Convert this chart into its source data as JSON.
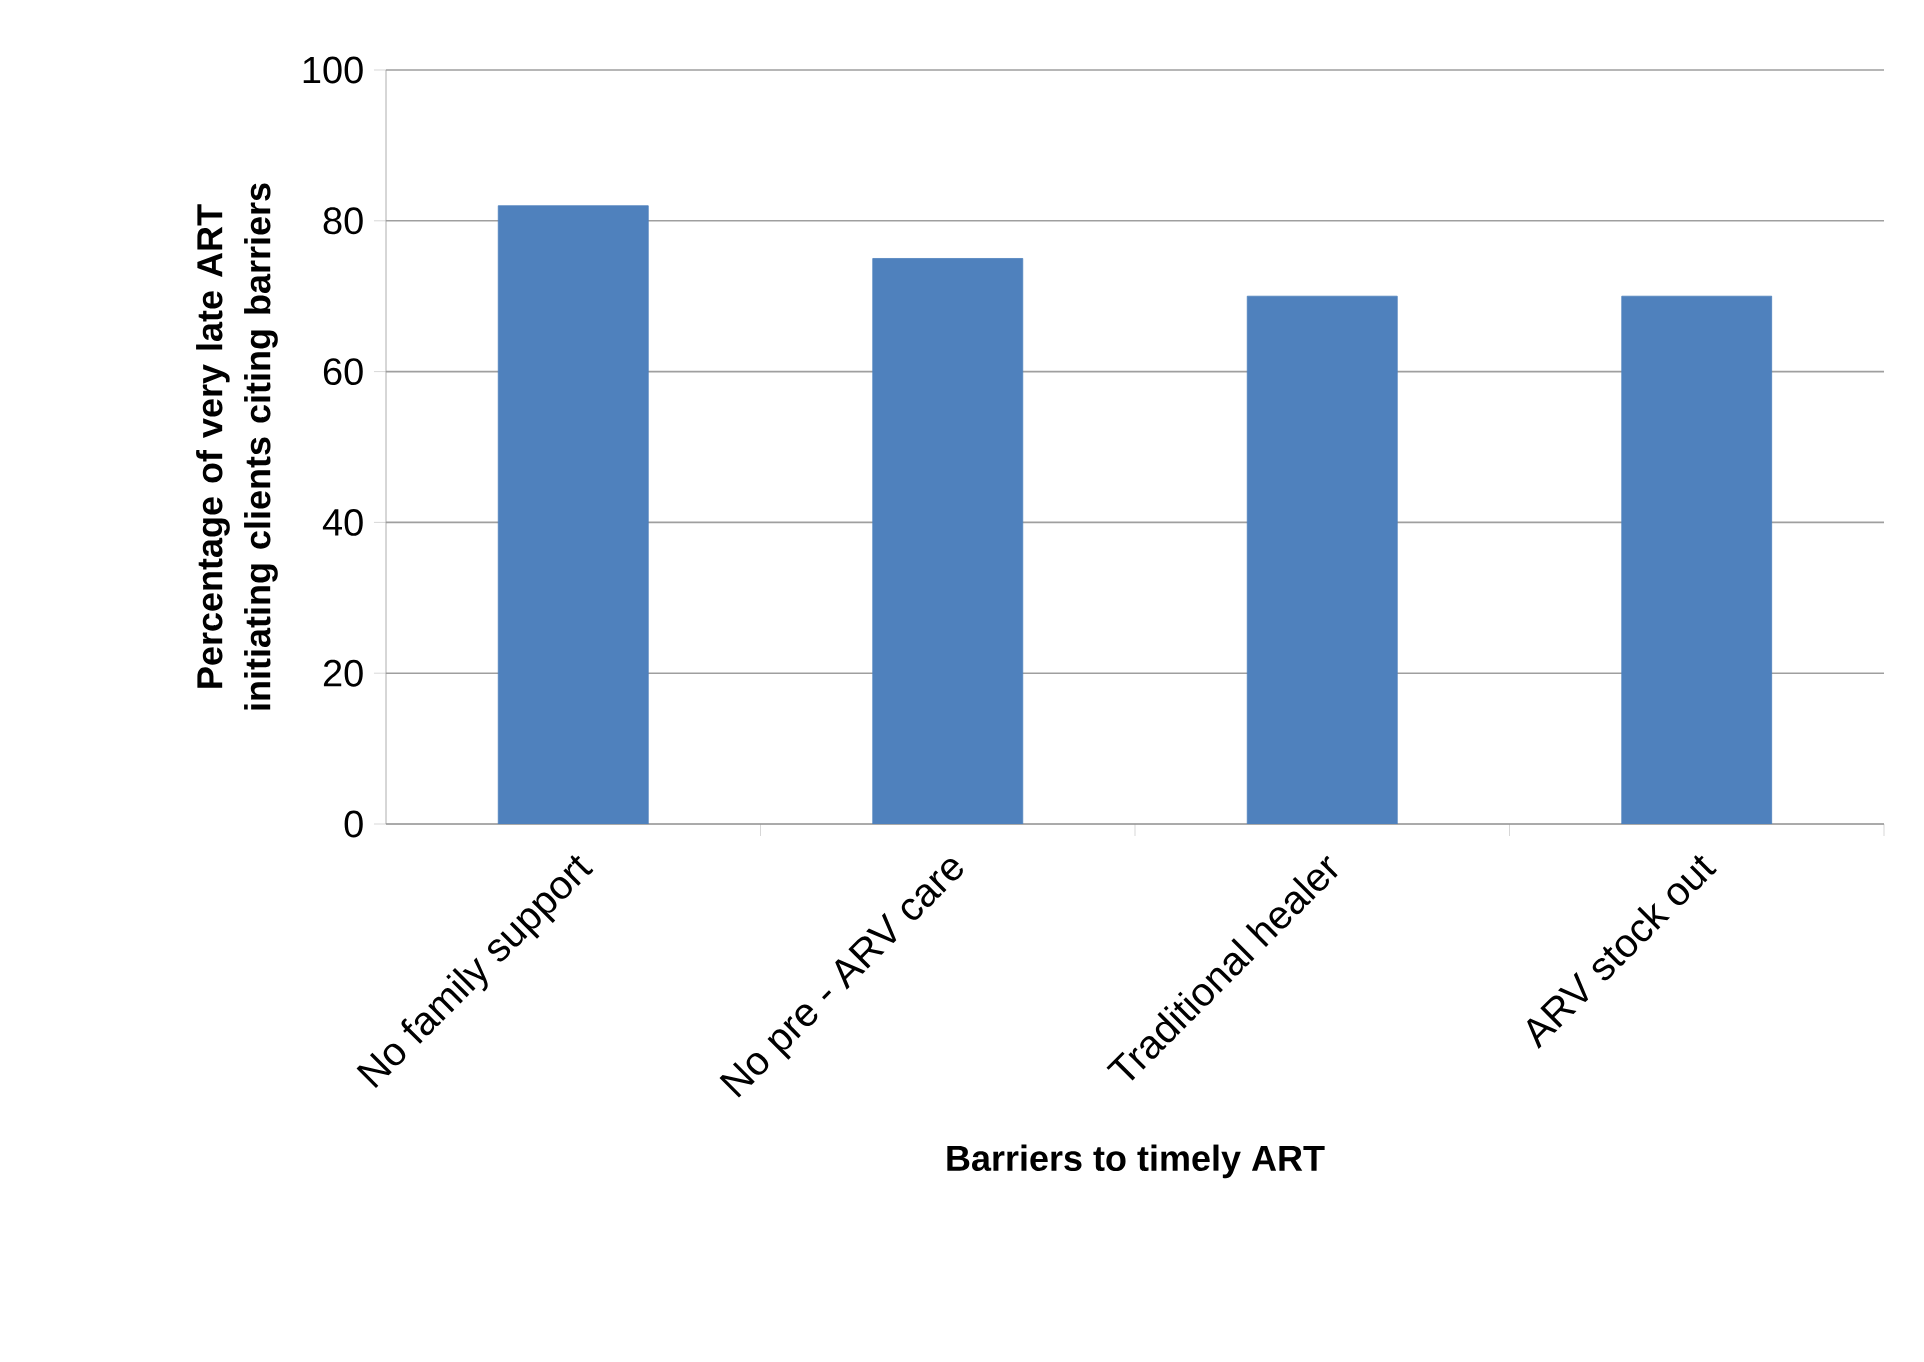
{
  "chart_data": {
    "type": "bar",
    "categories": [
      "No family support",
      "No pre - ARV care",
      "Traditional healer",
      "ARV stock out"
    ],
    "values": [
      82,
      75,
      70,
      70
    ],
    "color": "#4f81bd",
    "xlabel": "Barriers to timely ART",
    "ylabel": "Percentage of very late ART initiating clients citing barriers",
    "ylim": [
      0,
      100
    ],
    "yticks": [
      0,
      20,
      40,
      60,
      80,
      100
    ],
    "grid": "y"
  }
}
